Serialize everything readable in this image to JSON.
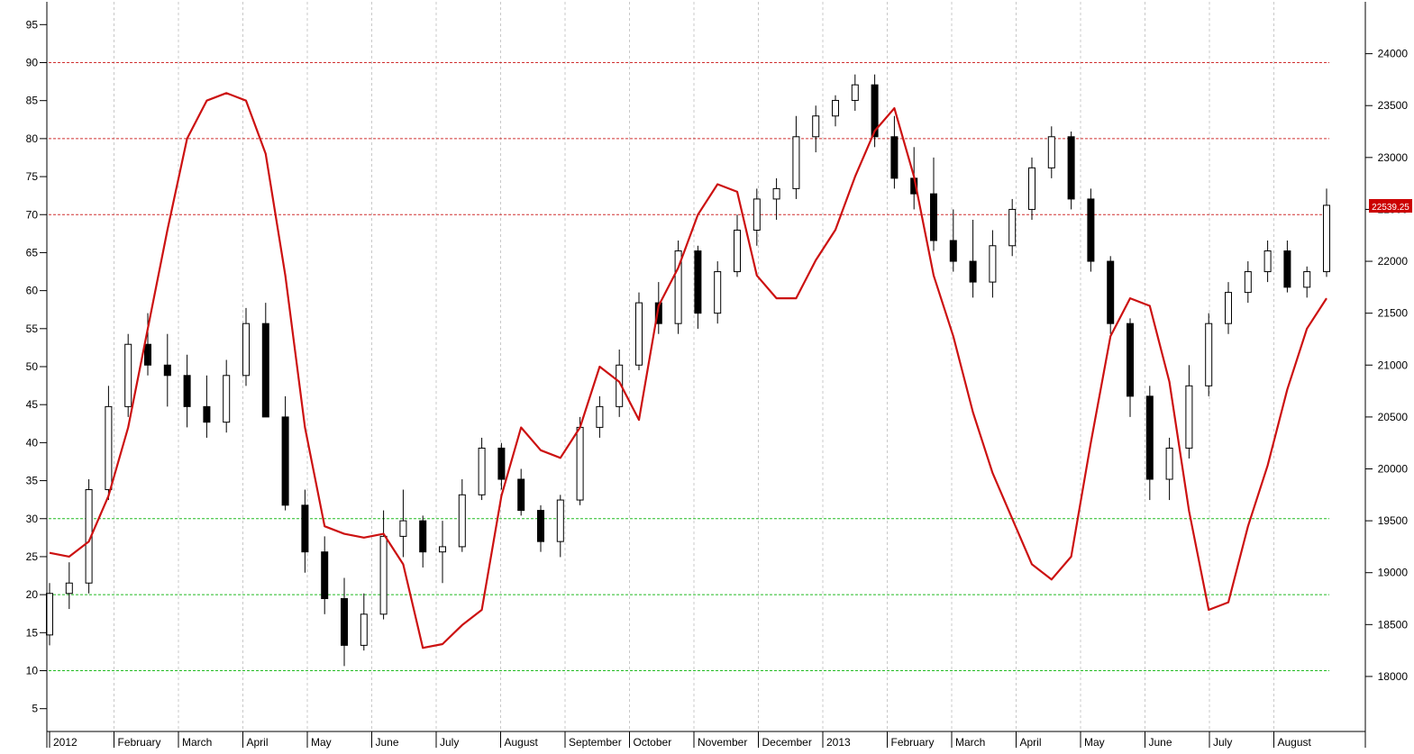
{
  "chart_data": {
    "type": "line",
    "title": "",
    "x_axis": {
      "tick_labels": [
        "2012",
        "February",
        "March",
        "April",
        "May",
        "June",
        "July",
        "August",
        "September",
        "October",
        "November",
        "December",
        "2013",
        "February",
        "March",
        "April",
        "May",
        "June",
        "July",
        "August"
      ]
    },
    "y_left": {
      "range": [
        2,
        98
      ],
      "ticks": [
        5,
        10,
        15,
        20,
        25,
        30,
        35,
        40,
        45,
        50,
        55,
        60,
        65,
        70,
        75,
        80,
        85,
        90,
        95
      ]
    },
    "y_right": {
      "range": [
        17470,
        24500
      ],
      "ticks": [
        18000,
        18500,
        19000,
        19500,
        20000,
        20500,
        21000,
        21500,
        22000,
        22500,
        23000,
        23500,
        24000
      ]
    },
    "reference_lines": [
      {
        "value": 90,
        "color": "#d03030"
      },
      {
        "value": 80,
        "color": "#d03030"
      },
      {
        "value": 70,
        "color": "#d03030"
      },
      {
        "value": 30,
        "color": "#22bb22"
      },
      {
        "value": 20,
        "color": "#22bb22"
      },
      {
        "value": 10,
        "color": "#22bb22"
      }
    ],
    "last_price_label": "22539.25",
    "colors": {
      "oscillator": "#cc1111",
      "candle_up_fill": "#ffffff",
      "candle_down_fill": "#000000",
      "grid": "#c8c8c8",
      "last_price_bg": "#cc0000",
      "last_price_text": "#ffffff"
    },
    "series": [
      {
        "style": "line",
        "axis": "left",
        "values": [
          25.5,
          25,
          27,
          33,
          42,
          55,
          68,
          80,
          85,
          86,
          85,
          78,
          62,
          42,
          29,
          28,
          27.5,
          28,
          24,
          13,
          13.5,
          16,
          18,
          33,
          42,
          39,
          38,
          42,
          50,
          48,
          43,
          58,
          63,
          70,
          74,
          73,
          62,
          59,
          59,
          64,
          68,
          75,
          81,
          84,
          75,
          62,
          54,
          44,
          36,
          30,
          24,
          22,
          25,
          40,
          54,
          59,
          58,
          48,
          31,
          18,
          19,
          29,
          37,
          47,
          55,
          59
        ]
      },
      {
        "style": "candlestick",
        "axis": "right",
        "values": [
          [
            18400,
            18900,
            18300,
            18800
          ],
          [
            18800,
            19100,
            18650,
            18900
          ],
          [
            18900,
            19900,
            18800,
            19800
          ],
          [
            19800,
            20800,
            19700,
            20600
          ],
          [
            20600,
            21300,
            20500,
            21200
          ],
          [
            21200,
            21500,
            20900,
            21000
          ],
          [
            21000,
            21300,
            20600,
            20900
          ],
          [
            20900,
            21100,
            20400,
            20600
          ],
          [
            20600,
            20900,
            20300,
            20450
          ],
          [
            20450,
            21050,
            20350,
            20900
          ],
          [
            20900,
            21550,
            20800,
            21400
          ],
          [
            21400,
            21600,
            20800,
            20500
          ],
          [
            20500,
            20700,
            19600,
            19650
          ],
          [
            19650,
            19800,
            19000,
            19200
          ],
          [
            19200,
            19350,
            18600,
            18750
          ],
          [
            18750,
            18950,
            18100,
            18300
          ],
          [
            18300,
            18800,
            18250,
            18600
          ],
          [
            18600,
            19600,
            18550,
            19350
          ],
          [
            19350,
            19800,
            19150,
            19500
          ],
          [
            19500,
            19550,
            19050,
            19200
          ],
          [
            19200,
            19500,
            18900,
            19250
          ],
          [
            19250,
            19900,
            19200,
            19750
          ],
          [
            19750,
            20300,
            19700,
            20200
          ],
          [
            20200,
            20250,
            19800,
            19900
          ],
          [
            19900,
            20000,
            19550,
            19600
          ],
          [
            19600,
            19650,
            19200,
            19300
          ],
          [
            19300,
            19750,
            19150,
            19700
          ],
          [
            19700,
            20500,
            19650,
            20400
          ],
          [
            20400,
            20700,
            20300,
            20600
          ],
          [
            20600,
            21150,
            20500,
            21000
          ],
          [
            21000,
            21700,
            20950,
            21600
          ],
          [
            21600,
            21800,
            21300,
            21400
          ],
          [
            21400,
            22200,
            21300,
            22100
          ],
          [
            22100,
            22150,
            21350,
            21500
          ],
          [
            21500,
            22000,
            21400,
            21900
          ],
          [
            21900,
            22450,
            21850,
            22300
          ],
          [
            22300,
            22700,
            22150,
            22600
          ],
          [
            22600,
            22800,
            22400,
            22700
          ],
          [
            22700,
            23400,
            22600,
            23200
          ],
          [
            23200,
            23500,
            23050,
            23400
          ],
          [
            23400,
            23600,
            23300,
            23550
          ],
          [
            23550,
            23800,
            23450,
            23700
          ],
          [
            23700,
            23800,
            23100,
            23200
          ],
          [
            23200,
            23400,
            22700,
            22800
          ],
          [
            22800,
            23100,
            22500,
            22650
          ],
          [
            22650,
            23000,
            22100,
            22200
          ],
          [
            22200,
            22500,
            21900,
            22000
          ],
          [
            22000,
            22400,
            21650,
            21800
          ],
          [
            21800,
            22300,
            21650,
            22150
          ],
          [
            22150,
            22600,
            22050,
            22500
          ],
          [
            22500,
            23000,
            22400,
            22900
          ],
          [
            22900,
            23300,
            22800,
            23200
          ],
          [
            23200,
            23250,
            22500,
            22600
          ],
          [
            22600,
            22700,
            21900,
            22000
          ],
          [
            22000,
            22050,
            21300,
            21400
          ],
          [
            21400,
            21450,
            20500,
            20700
          ],
          [
            20700,
            20800,
            19700,
            19900
          ],
          [
            19900,
            20300,
            19700,
            20200
          ],
          [
            20200,
            21000,
            20100,
            20800
          ],
          [
            20800,
            21500,
            20700,
            21400
          ],
          [
            21400,
            21800,
            21300,
            21700
          ],
          [
            21700,
            22000,
            21600,
            21900
          ],
          [
            21900,
            22200,
            21800,
            22100
          ],
          [
            22100,
            22200,
            21700,
            21750
          ],
          [
            21750,
            21950,
            21650,
            21900
          ],
          [
            21900,
            22700,
            21850,
            22539.25
          ]
        ]
      }
    ]
  }
}
